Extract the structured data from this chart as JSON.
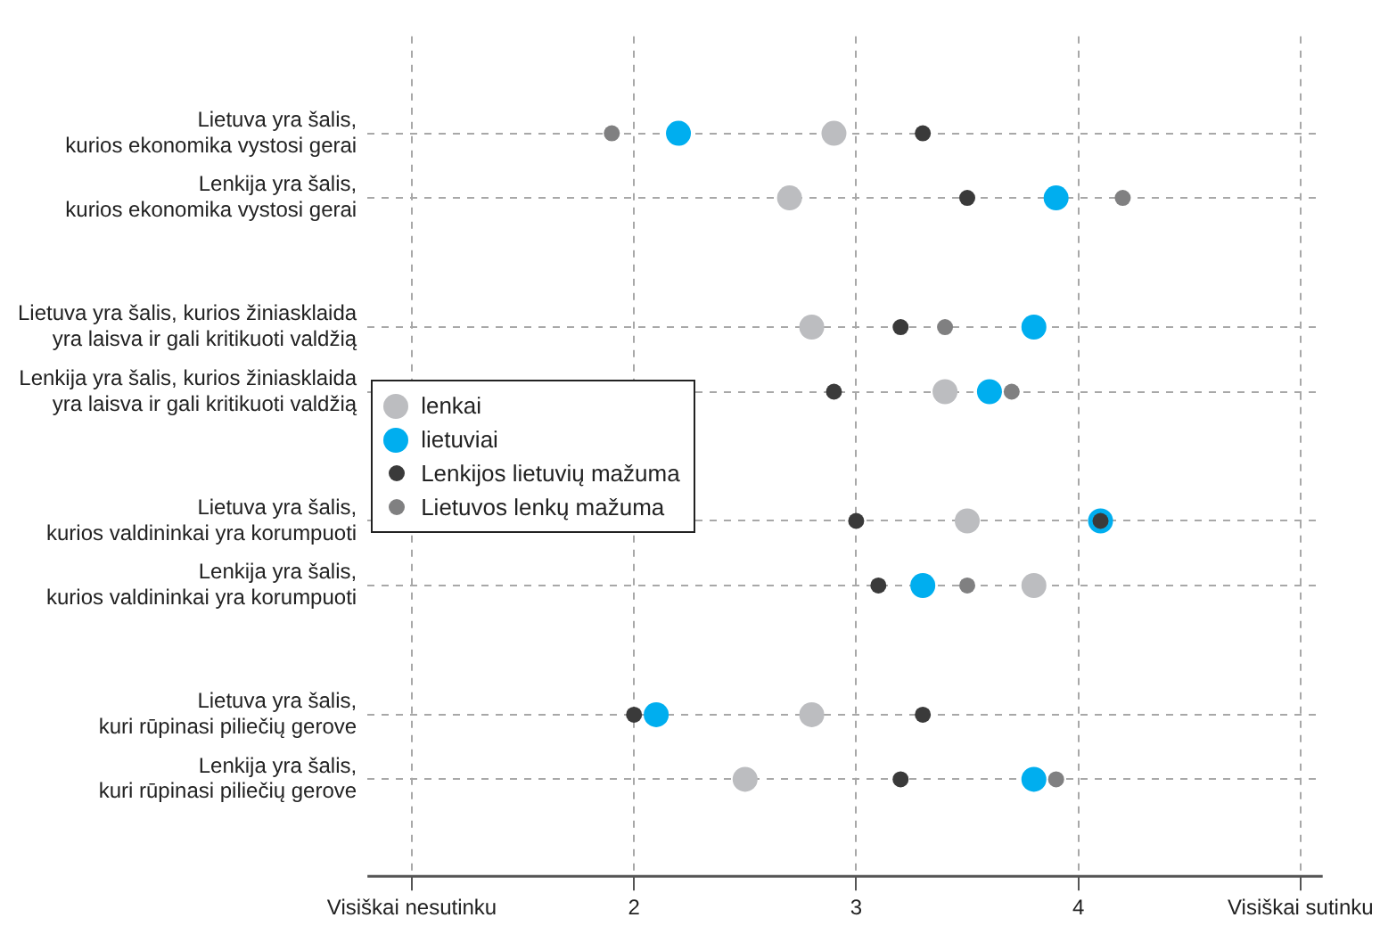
{
  "chart_data": {
    "type": "scatter",
    "orientation": "horizontal",
    "categories": [
      "Lietuva yra šalis,\nkurios ekonomika vystosi gerai",
      "Lenkija yra šalis,\nkurios ekonomika vystosi gerai",
      null,
      "Lietuva yra šalis, kurios žiniasklaida\nyra laisva ir gali kritikuoti valdžią",
      "Lenkija yra šalis, kurios žiniasklaida\nyra laisva ir gali kritikuoti valdžią",
      null,
      "Lietuva yra šalis,\nkurios valdininkai yra korumpuoti",
      "Lenkija yra šalis,\nkurios valdininkai yra korumpuoti",
      null,
      "Lietuva yra šalis,\nkuri rūpinasi piliečių gerove",
      "Lenkija yra šalis,\nkuri rūpinasi piliečių gerove"
    ],
    "series": [
      {
        "name": "lenkai",
        "color": "#bcbdc0",
        "values": [
          2.9,
          2.7,
          null,
          2.8,
          3.4,
          null,
          3.5,
          3.8,
          null,
          2.8,
          2.5
        ]
      },
      {
        "name": "lietuviai",
        "color": "#00aeef",
        "values": [
          2.2,
          3.9,
          null,
          3.8,
          3.6,
          null,
          4.1,
          3.3,
          null,
          2.1,
          3.8
        ]
      },
      {
        "name": "Lenkijos lietuvių mažuma",
        "color": "#3a3a3a",
        "values": [
          3.3,
          3.5,
          null,
          3.2,
          2.9,
          null,
          3.0,
          3.1,
          null,
          3.3,
          3.2
        ]
      },
      {
        "name": "Lietuvos lenkų mažuma",
        "color": "#808081",
        "colors": [
          "#808081",
          "#808081",
          null,
          "#808081",
          "#808081",
          null,
          "#3a3a3a",
          "#808081",
          null,
          "#3a3a3a",
          "#808081"
        ],
        "values": [
          1.9,
          4.2,
          null,
          3.4,
          3.7,
          null,
          4.1,
          3.5,
          null,
          2.0,
          3.9
        ]
      }
    ],
    "xlim": [
      0.8,
      5.1
    ],
    "xticks": [
      {
        "value": 1,
        "label": "Visiškai nesutinku"
      },
      2,
      3,
      4,
      {
        "value": 5,
        "label": "Visiškai sutinku"
      }
    ],
    "grid": true,
    "legend": "left",
    "marker": "circle"
  }
}
